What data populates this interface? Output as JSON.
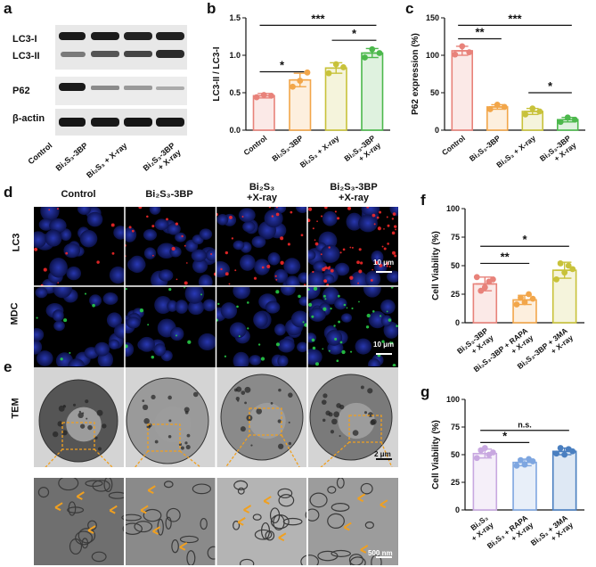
{
  "panel_letters": {
    "a": "a",
    "b": "b",
    "c": "c",
    "d": "d",
    "e": "e",
    "f": "f",
    "g": "g"
  },
  "western_blot": {
    "rows": [
      "LC3-I",
      "LC3-II",
      "P62",
      "β-actin"
    ],
    "lanes": [
      "Control",
      "Bi2S3-3BP",
      "Bi2S3 + X-ray",
      "Bi2S3-3BP + X-ray"
    ],
    "lane_labels_display": [
      "Control",
      "Bi₂S₃-3BP",
      "Bi₂S₃ + X-ray",
      "Bi₂S₃-3BP\n+ X-ray"
    ]
  },
  "fluorescence": {
    "columns": [
      "Control",
      "Bi₂S₃-3BP",
      "Bi₂S₃\n+X-ray",
      "Bi₂S₃-3BP\n+X-ray"
    ],
    "rows": [
      "LC3",
      "MDC"
    ],
    "scale": "10 μm"
  },
  "tem": {
    "row_label": "TEM",
    "scale_top": "2 μm",
    "scale_bottom": "500 nm"
  },
  "chart_data": [
    {
      "panel": "b",
      "type": "bar",
      "categories": [
        "Control",
        "Bi₂S₃-3BP",
        "Bi₂S₃ + X-ray",
        "Bi₂S₃-3BP + X-ray"
      ],
      "values": [
        0.46,
        0.67,
        0.83,
        1.03
      ],
      "errors": [
        0.03,
        0.09,
        0.07,
        0.06
      ],
      "points": [
        [
          0.44,
          0.47,
          0.46
        ],
        [
          0.58,
          0.66,
          0.77
        ],
        [
          0.76,
          0.88,
          0.84
        ],
        [
          0.97,
          1.08,
          1.03
        ]
      ],
      "colors": [
        "#e8827a",
        "#f2a64a",
        "#c8c23a",
        "#4cb84c"
      ],
      "ylabel": "LC3-II / LC3-I",
      "ylim": [
        0,
        1.5
      ],
      "yticks": [
        "0.0",
        "0.5",
        "1.0",
        "1.5"
      ],
      "significance": [
        {
          "from": 0,
          "to": 1,
          "label": "*",
          "level": 0.78
        },
        {
          "from": 0,
          "to": 3,
          "label": "***",
          "level": 1.4
        },
        {
          "from": 2,
          "to": 3,
          "label": "*",
          "level": 1.2
        }
      ]
    },
    {
      "panel": "c",
      "type": "bar",
      "categories": [
        "Control",
        "Bi₂S₃-3BP",
        "Bi₂S₃ + X-ray",
        "Bi₂S₃-3BP + X-ray"
      ],
      "values": [
        106,
        31,
        25,
        14
      ],
      "errors": [
        6,
        3,
        4,
        3
      ],
      "points": [
        [
          101,
          112,
          104
        ],
        [
          28,
          34,
          31
        ],
        [
          21,
          29,
          25
        ],
        [
          11,
          17,
          14
        ]
      ],
      "colors": [
        "#e8827a",
        "#f2a64a",
        "#c8c23a",
        "#4cb84c"
      ],
      "ylabel": "P62 expression (%)",
      "ylim": [
        0,
        150
      ],
      "yticks": [
        "0",
        "50",
        "100",
        "150"
      ],
      "significance": [
        {
          "from": 0,
          "to": 1,
          "label": "**",
          "level": 122
        },
        {
          "from": 0,
          "to": 3,
          "label": "***",
          "level": 140
        },
        {
          "from": 2,
          "to": 3,
          "label": "*",
          "level": 50
        }
      ]
    },
    {
      "panel": "f",
      "type": "bar",
      "categories": [
        "Bi₂S₃-3BP + X-ray",
        "Bi₂S₃-3BP + RAPA + X-ray",
        "Bi₂S₃-3BP + 3MA + X-ray"
      ],
      "values": [
        34,
        20,
        46
      ],
      "errors": [
        6,
        4,
        7
      ],
      "points": [
        [
          40,
          28,
          31,
          36,
          38
        ],
        [
          16,
          22,
          18,
          25,
          21
        ],
        [
          38,
          52,
          44,
          50,
          47
        ]
      ],
      "colors": [
        "#e8827a",
        "#f2a64a",
        "#c8c23a"
      ],
      "ylabel": "Cell Viability (%)",
      "ylim": [
        0,
        100
      ],
      "yticks": [
        "0",
        "25",
        "50",
        "75",
        "100"
      ],
      "significance": [
        {
          "from": 0,
          "to": 1,
          "label": "**",
          "level": 52
        },
        {
          "from": 0,
          "to": 2,
          "label": "*",
          "level": 67
        }
      ]
    },
    {
      "panel": "g",
      "type": "bar",
      "categories": [
        "Bi₂S₃ + X-ray",
        "Bi₂S₃ + RAPA + X-ray",
        "Bi₂S₃ + 3MA + X-ray"
      ],
      "values": [
        51,
        43,
        53
      ],
      "errors": [
        4,
        3,
        3
      ],
      "points": [
        [
          47,
          54,
          56,
          50,
          52
        ],
        [
          40,
          45,
          41,
          46,
          44
        ],
        [
          51,
          56,
          50,
          55,
          53
        ]
      ],
      "colors": [
        "#c8a8e0",
        "#7ea6e0",
        "#4a7fc0"
      ],
      "ylabel": "Cell Viability (%)",
      "ylim": [
        0,
        100
      ],
      "yticks": [
        "0",
        "25",
        "50",
        "75",
        "100"
      ],
      "significance": [
        {
          "from": 0,
          "to": 1,
          "label": "*",
          "level": 61
        },
        {
          "from": 0,
          "to": 2,
          "label": "n.s.",
          "level": 72
        }
      ]
    }
  ]
}
